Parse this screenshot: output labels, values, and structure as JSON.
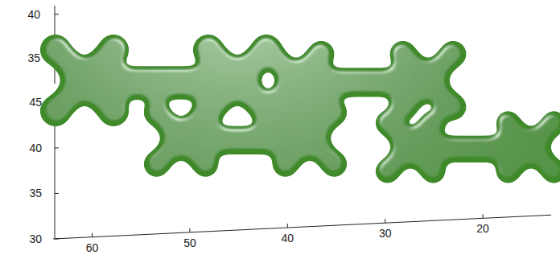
{
  "chart_data": {
    "type": "isosurface",
    "color": "#3f8a2a",
    "xlim": [
      64,
      13
    ],
    "xticks": [
      60,
      50,
      40,
      30,
      20
    ],
    "ylim": [
      32,
      41
    ],
    "yticks": [
      35,
      40
    ],
    "zlim": [
      30,
      46
    ],
    "zticks": [
      30,
      35,
      40,
      45
    ]
  }
}
